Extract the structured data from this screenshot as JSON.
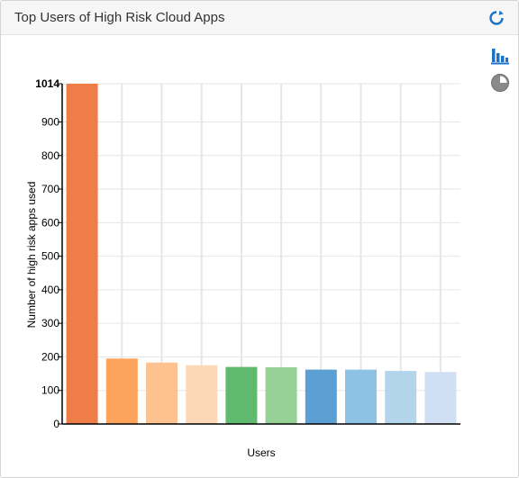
{
  "widget": {
    "title": "Top Users of High Risk Cloud Apps",
    "icons": {
      "refresh": "refresh-icon",
      "bar_view": "bar-chart-icon",
      "pie_view": "pie-chart-icon"
    }
  },
  "chart_data": {
    "type": "bar",
    "categories": [
      "",
      "",
      "",
      "",
      "",
      "",
      "",
      "",
      "",
      ""
    ],
    "values": [
      1014,
      195,
      183,
      175,
      170,
      169,
      162,
      162,
      158,
      155
    ],
    "colors": [
      "#ef7d48",
      "#fea35b",
      "#fdc28f",
      "#fcd8b8",
      "#5fb96f",
      "#96d295",
      "#5c9fd2",
      "#8cc3e4",
      "#b3d5eb",
      "#d1dff5"
    ],
    "xlabel": "Users",
    "ylabel": "Number of high risk apps used",
    "ylim": [
      0,
      1014
    ],
    "yticks": [
      "0",
      "100",
      "200",
      "300",
      "400",
      "500",
      "600",
      "700",
      "800",
      "900",
      "1014"
    ],
    "ytick_values": [
      0,
      100,
      200,
      300,
      400,
      500,
      600,
      700,
      800,
      900,
      1014
    ],
    "grid": true
  }
}
